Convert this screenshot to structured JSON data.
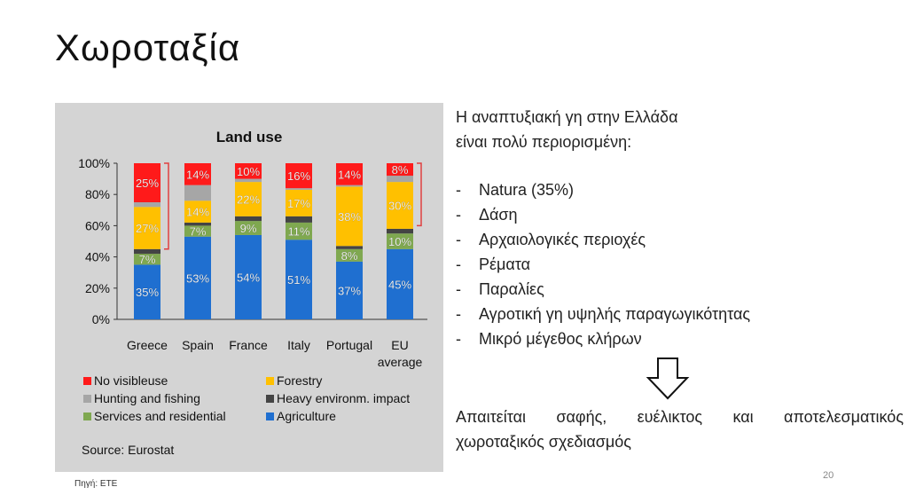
{
  "slide": {
    "title": "Χωροταξία",
    "page_number": "20",
    "source_note": "Πηγή: ΕΤΕ"
  },
  "right_panel": {
    "lead_line1": "Η αναπτυξιακή γη στην Ελλάδα",
    "lead_line2": "είναι πολύ περιορισμένη:",
    "bullets": [
      {
        "dash": "-",
        "text": "Natura (35%)"
      },
      {
        "dash": "-",
        "text": "Δάση"
      },
      {
        "dash": "-",
        "text": "Αρχαιολογικές περιοχές"
      },
      {
        "dash": "-",
        "text": "Ρέματα"
      },
      {
        "dash": "-",
        "text": "Παραλίες"
      },
      {
        "dash": "-",
        "text": "Αγροτική γη υψηλής παραγωγικότητας"
      },
      {
        "dash": "-",
        "text": "Μικρό μέγεθος κλήρων"
      }
    ],
    "conclusion_words": [
      "Απαιτείται",
      "σαφής,",
      "ευέλικτος",
      "και",
      "αποτελεσματικός"
    ],
    "conclusion_line2": "χωροταξικός σχεδιασμός",
    "arrow_icon": "down-arrow-outline-icon"
  },
  "chart_data": {
    "type": "bar",
    "stacked": true,
    "title": "Land use",
    "source": "Source: Eurostat",
    "ylim": [
      0,
      100
    ],
    "yticks": [
      "0%",
      "20%",
      "40%",
      "60%",
      "80%",
      "100%"
    ],
    "categories": [
      {
        "line1": "Greece",
        "line2": ""
      },
      {
        "line1": "Spain",
        "line2": ""
      },
      {
        "line1": "France",
        "line2": ""
      },
      {
        "line1": "Italy",
        "line2": ""
      },
      {
        "line1": "Portugal",
        "line2": ""
      },
      {
        "line1": "EU",
        "line2": "average"
      }
    ],
    "series": [
      {
        "name": "Agriculture",
        "color": "#1f6fd0",
        "values": [
          35,
          53,
          54,
          51,
          37,
          45
        ],
        "labels": [
          "35%",
          "53%",
          "54%",
          "51%",
          "37%",
          "45%"
        ]
      },
      {
        "name": "Services and residential",
        "color": "#7fa850",
        "values": [
          7,
          7,
          9,
          11,
          8,
          10
        ],
        "labels": [
          "7%",
          "7%",
          "9%",
          "11%",
          "8%",
          "10%"
        ]
      },
      {
        "name": "Heavy environm. impact",
        "color": "#444444",
        "values": [
          3,
          2,
          3,
          4,
          2,
          3
        ],
        "labels": [
          "",
          "",
          "",
          "",
          "",
          ""
        ]
      },
      {
        "name": "Forestry",
        "color": "#ffc000",
        "values": [
          27,
          14,
          22,
          17,
          38,
          30
        ],
        "labels": [
          "27%",
          "14%",
          "22%",
          "17%",
          "38%",
          "30%"
        ]
      },
      {
        "name": "Hunting and fishing",
        "color": "#a6a6a6",
        "values": [
          3,
          10,
          2,
          1,
          1,
          4
        ],
        "labels": [
          "",
          "",
          "",
          "",
          "",
          ""
        ]
      },
      {
        "name": "No visibleuse",
        "color": "#ff1a1a",
        "values": [
          25,
          14,
          10,
          16,
          14,
          8
        ],
        "labels": [
          "25%",
          "14%",
          "10%",
          "16%",
          "14%",
          "8%"
        ]
      }
    ],
    "legend_order": [
      "No visibleuse",
      "Forestry",
      "Hunting and fishing",
      "Heavy environm. impact",
      "Services and residential",
      "Agriculture"
    ],
    "legend_position": "bottom",
    "grid": false,
    "brackets": [
      {
        "category_index": 0,
        "from": 45,
        "to": 100,
        "color": "#e04040",
        "side": "right"
      },
      {
        "category_index": 5,
        "from": 60,
        "to": 100,
        "color": "#e04040",
        "side": "right"
      }
    ]
  }
}
